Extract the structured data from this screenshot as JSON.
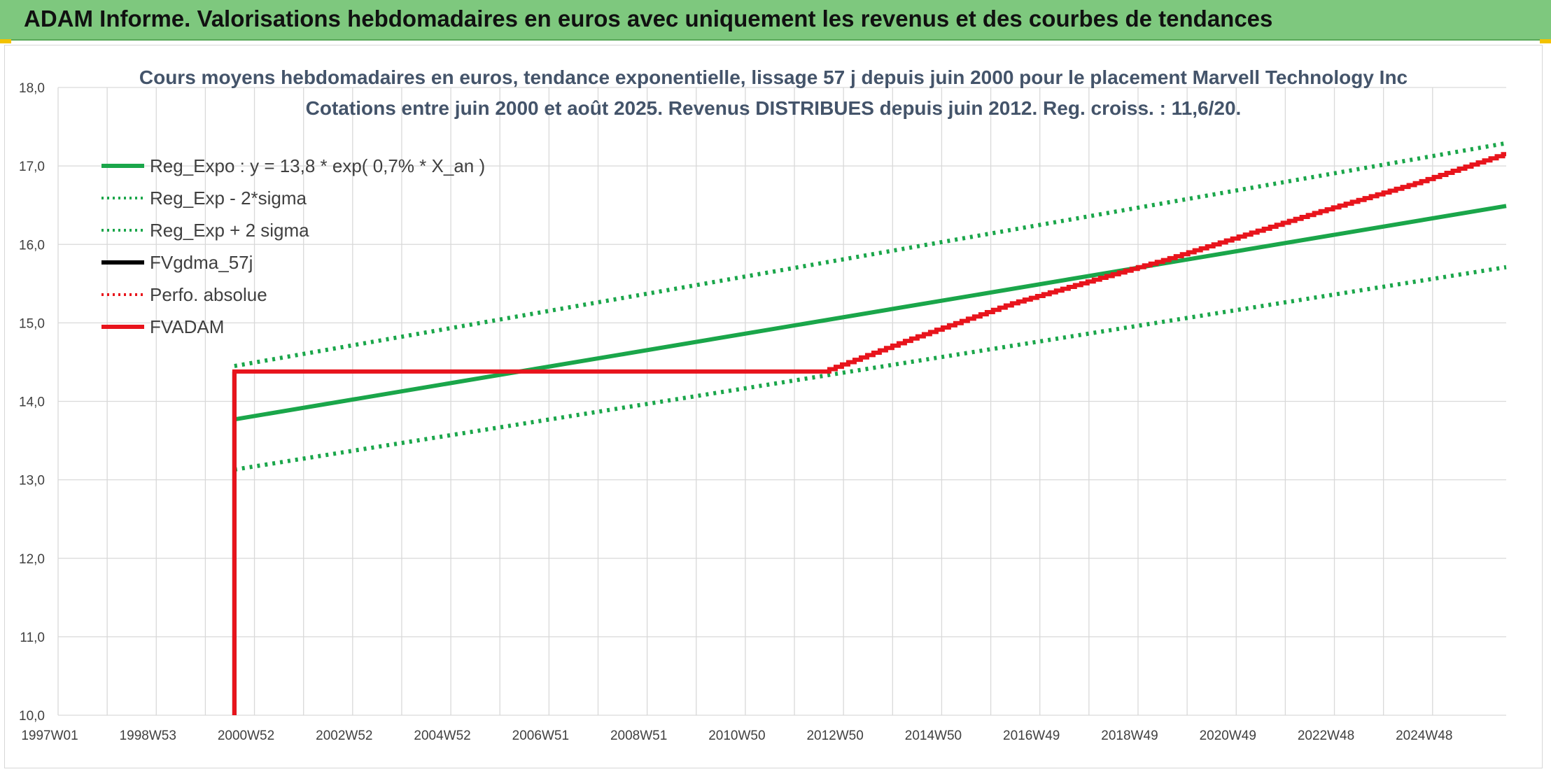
{
  "header": {
    "title": "ADAM Informe. Valorisations hebdomadaires en euros avec uniquement les revenus et des courbes de tendances"
  },
  "colors": {
    "header_bg": "#7ec87e",
    "green": "#1aa64a",
    "red": "#e8141c",
    "black": "#000000",
    "grid": "#d9d9d9"
  },
  "chart_data": {
    "type": "line",
    "title": "Cours moyens hebdomadaires en euros, tendance exponentielle, lissage 57 j depuis juin 2000 pour le placement Marvell Technology Inc",
    "subtitle": "Cotations entre juin 2000 et août 2025. Revenus DISTRIBUES depuis juin 2012. Reg. croiss. : 11,6/20.",
    "xlabel": "",
    "ylabel": "",
    "x_tick_labels": [
      "1997W01",
      "1998W53",
      "2000W52",
      "2002W52",
      "2004W52",
      "2006W51",
      "2008W51",
      "2010W50",
      "2012W50",
      "2014W50",
      "2016W49",
      "2018W49",
      "2020W49",
      "2022W48",
      "2024W48"
    ],
    "xlim": [
      1997.0,
      2025.75
    ],
    "ylim": [
      10.0,
      18.0
    ],
    "y_tick_labels": [
      "10,0",
      "11,0",
      "12,0",
      "13,0",
      "14,0",
      "15,0",
      "16,0",
      "17,0",
      "18,0"
    ],
    "grid": true,
    "legend_position": "top-left",
    "series": [
      {
        "name": "Reg_Expo : y = 13,8 * exp( 0,7% *  X_an )",
        "style": "solid",
        "color": "#1aa64a",
        "x": [
          2000.5,
          2025.75
        ],
        "y": [
          13.77,
          16.49
        ]
      },
      {
        "name": "Reg_Exp - 2*sigma",
        "style": "dotted",
        "color": "#1aa64a",
        "x": [
          2000.5,
          2025.75
        ],
        "y": [
          13.13,
          15.71
        ]
      },
      {
        "name": "Reg_Exp + 2 sigma",
        "style": "dotted",
        "color": "#1aa64a",
        "x": [
          2000.5,
          2025.75
        ],
        "y": [
          14.45,
          17.29
        ]
      },
      {
        "name": "FVgdma_57j",
        "style": "solid",
        "color": "#000000",
        "x": [
          2000.5,
          2000.5
        ],
        "y": [
          10.0,
          14.38
        ]
      },
      {
        "name": "Perfo. absolue",
        "style": "dotted",
        "color": "#e8141c",
        "x": [],
        "y": []
      },
      {
        "name": "FVADAM",
        "style": "solid",
        "color": "#e8141c",
        "x": [
          2000.5,
          2000.5,
          2012.25,
          2014.0,
          2016.0,
          2018.0,
          2019.0,
          2020.0,
          2022.0,
          2024.0,
          2025.75
        ],
        "y": [
          10.0,
          14.38,
          14.38,
          14.8,
          15.25,
          15.62,
          15.8,
          16.0,
          16.4,
          16.78,
          17.15
        ]
      }
    ]
  }
}
